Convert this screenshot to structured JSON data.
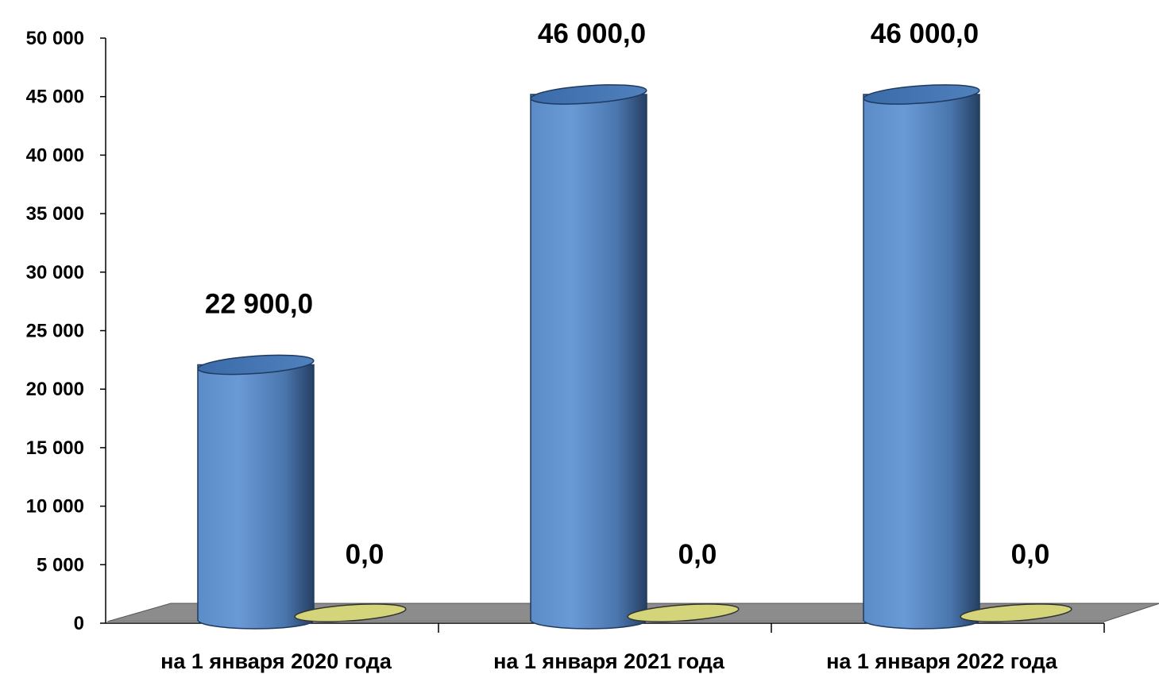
{
  "chart_data": {
    "type": "bar",
    "style": "3d-cylinder",
    "title": "",
    "xlabel": "",
    "ylabel": "",
    "ylim": [
      0,
      50000
    ],
    "yticks": [
      0,
      5000,
      10000,
      15000,
      20000,
      25000,
      30000,
      35000,
      40000,
      45000,
      50000
    ],
    "ytick_labels": [
      "0",
      "5 000",
      "10 000",
      "15 000",
      "20 000",
      "25 000",
      "30 000",
      "35 000",
      "40 000",
      "45 000",
      "50 000"
    ],
    "categories": [
      "на 1 января 2020 года",
      "на  1 января 2021 года",
      "на  1 января 2022 года"
    ],
    "series": [
      {
        "values": [
          22900,
          46000,
          46000
        ],
        "labels": [
          "22 900,0",
          "46 000,0",
          "46 000,0"
        ],
        "color": "#4f81bd"
      },
      {
        "values": [
          0,
          0,
          0
        ],
        "labels": [
          "0,0",
          "0,0",
          "0,0"
        ],
        "color": "#d4d47a"
      }
    ],
    "grid": false,
    "legend": "none",
    "floor_color": "#8c8c8c"
  }
}
